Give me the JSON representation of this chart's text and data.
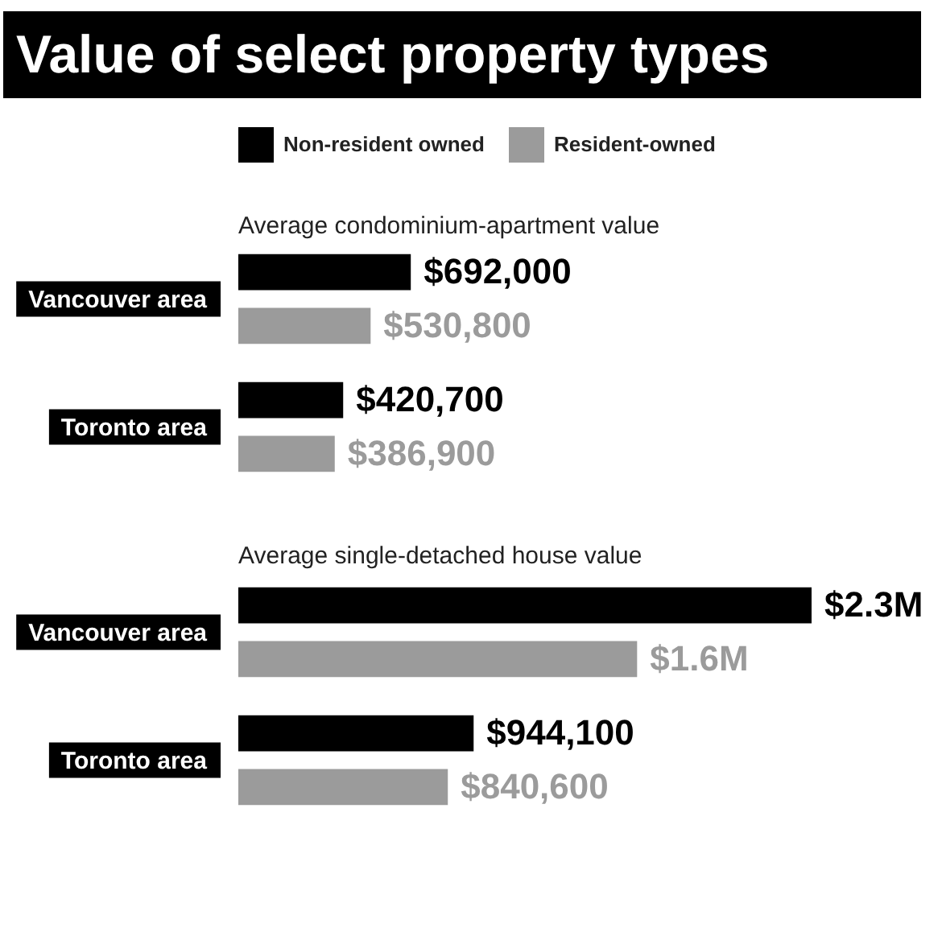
{
  "chart_data": [
    {
      "type": "bar",
      "orientation": "horizontal",
      "title": "Value of select property types",
      "subtitle": "Average condominium-apartment value",
      "categories": [
        "Vancouver area",
        "Toronto area"
      ],
      "legend": "top",
      "series": [
        {
          "name": "Non-resident owned",
          "color": "#000000",
          "values": [
            692000,
            420700
          ],
          "value_labels": [
            "$692,000",
            "$420,700"
          ]
        },
        {
          "name": "Resident-owned",
          "color": "#9b9b9b",
          "values": [
            530800,
            386900
          ],
          "value_labels": [
            "$530,800",
            "$386,900"
          ]
        }
      ]
    },
    {
      "type": "bar",
      "orientation": "horizontal",
      "subtitle": "Average single-detached house value",
      "categories": [
        "Vancouver area",
        "Toronto area"
      ],
      "series": [
        {
          "color": "#000000",
          "values": [
            2300000,
            944100
          ],
          "value_labels": [
            "$2.3M",
            "$944,100"
          ]
        },
        {
          "color": "#9b9b9b",
          "values": [
            1600000,
            840600
          ],
          "value_labels": [
            "$1.6M",
            "$840,600"
          ]
        }
      ]
    }
  ]
}
